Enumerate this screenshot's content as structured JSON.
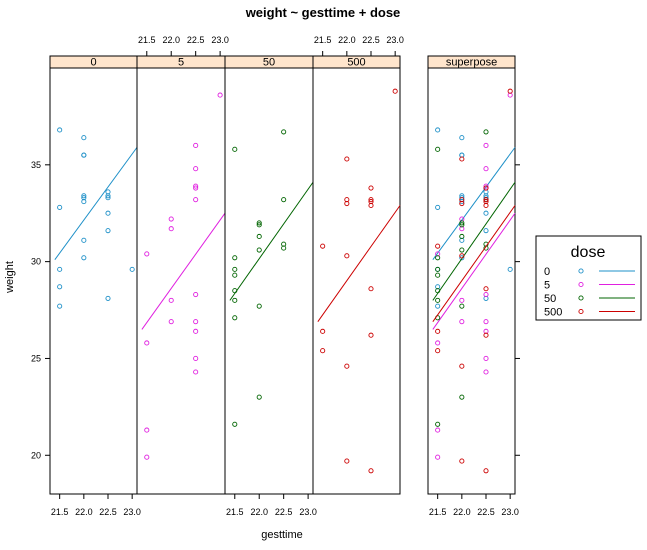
{
  "chart_data": {
    "type": "scatter",
    "title": "weight ~ gesttime + dose",
    "xlabel": "gesttime",
    "ylabel": "weight",
    "xlim": [
      21.3,
      23.1
    ],
    "ylim": [
      18,
      40
    ],
    "x_ticks": [
      "21.5",
      "22.0",
      "22.5",
      "23.0"
    ],
    "y_ticks": [
      "20",
      "25",
      "30",
      "35"
    ],
    "panels": [
      "0",
      "5",
      "50",
      "500",
      "superpose"
    ],
    "legend": {
      "title": "dose",
      "entries": [
        "0",
        "5",
        "50",
        "500"
      ],
      "placement": "right"
    },
    "series": [
      {
        "name": "0",
        "color": "#1e90c8",
        "points": [
          [
            21.5,
            36.8
          ],
          [
            21.5,
            32.8
          ],
          [
            21.5,
            29.6
          ],
          [
            21.5,
            28.7
          ],
          [
            21.5,
            27.7
          ],
          [
            22.0,
            36.4
          ],
          [
            22.0,
            35.5
          ],
          [
            22.0,
            35.5
          ],
          [
            22.0,
            33.4
          ],
          [
            22.0,
            33.3
          ],
          [
            22.0,
            33.1
          ],
          [
            22.0,
            31.1
          ],
          [
            22.0,
            30.2
          ],
          [
            22.5,
            33.6
          ],
          [
            22.5,
            33.4
          ],
          [
            22.5,
            33.3
          ],
          [
            22.5,
            32.5
          ],
          [
            22.5,
            31.6
          ],
          [
            22.5,
            28.1
          ],
          [
            23.0,
            29.6
          ]
        ],
        "fit": [
          [
            21.4,
            30.1
          ],
          [
            23.1,
            35.9
          ]
        ]
      },
      {
        "name": "5",
        "color": "#e020e0",
        "points": [
          [
            21.5,
            30.4
          ],
          [
            21.5,
            25.8
          ],
          [
            21.5,
            21.3
          ],
          [
            21.5,
            19.9
          ],
          [
            22.0,
            32.2
          ],
          [
            22.0,
            31.7
          ],
          [
            22.0,
            28.0
          ],
          [
            22.0,
            26.9
          ],
          [
            22.5,
            36.0
          ],
          [
            22.5,
            34.8
          ],
          [
            22.5,
            33.9
          ],
          [
            22.5,
            33.8
          ],
          [
            22.5,
            33.2
          ],
          [
            22.5,
            28.3
          ],
          [
            22.5,
            26.9
          ],
          [
            22.5,
            26.4
          ],
          [
            22.5,
            25.0
          ],
          [
            22.5,
            24.3
          ],
          [
            23.0,
            38.6
          ]
        ],
        "fit": [
          [
            21.4,
            26.5
          ],
          [
            23.1,
            32.5
          ]
        ]
      },
      {
        "name": "50",
        "color": "#006400",
        "points": [
          [
            21.5,
            35.8
          ],
          [
            21.5,
            30.2
          ],
          [
            21.5,
            29.6
          ],
          [
            21.5,
            29.3
          ],
          [
            21.5,
            28.5
          ],
          [
            21.5,
            28.0
          ],
          [
            21.5,
            27.1
          ],
          [
            21.5,
            21.6
          ],
          [
            22.0,
            32.0
          ],
          [
            22.0,
            31.9
          ],
          [
            22.0,
            31.3
          ],
          [
            22.0,
            30.6
          ],
          [
            22.0,
            27.7
          ],
          [
            22.0,
            23.0
          ],
          [
            22.5,
            36.7
          ],
          [
            22.5,
            33.2
          ],
          [
            22.5,
            30.9
          ],
          [
            22.5,
            30.7
          ]
        ],
        "fit": [
          [
            21.4,
            28.0
          ],
          [
            23.1,
            34.1
          ]
        ]
      },
      {
        "name": "500",
        "color": "#cc0000",
        "points": [
          [
            21.5,
            30.8
          ],
          [
            21.5,
            26.4
          ],
          [
            21.5,
            25.4
          ],
          [
            22.0,
            35.3
          ],
          [
            22.0,
            33.2
          ],
          [
            22.0,
            33.0
          ],
          [
            22.0,
            30.3
          ],
          [
            22.0,
            24.6
          ],
          [
            22.0,
            19.7
          ],
          [
            22.5,
            33.8
          ],
          [
            22.5,
            33.2
          ],
          [
            22.5,
            33.1
          ],
          [
            22.5,
            32.9
          ],
          [
            22.5,
            28.6
          ],
          [
            22.5,
            26.2
          ],
          [
            22.5,
            19.2
          ],
          [
            23.0,
            38.8
          ]
        ],
        "fit": [
          [
            21.4,
            26.9
          ],
          [
            23.1,
            32.9
          ]
        ]
      }
    ]
  }
}
